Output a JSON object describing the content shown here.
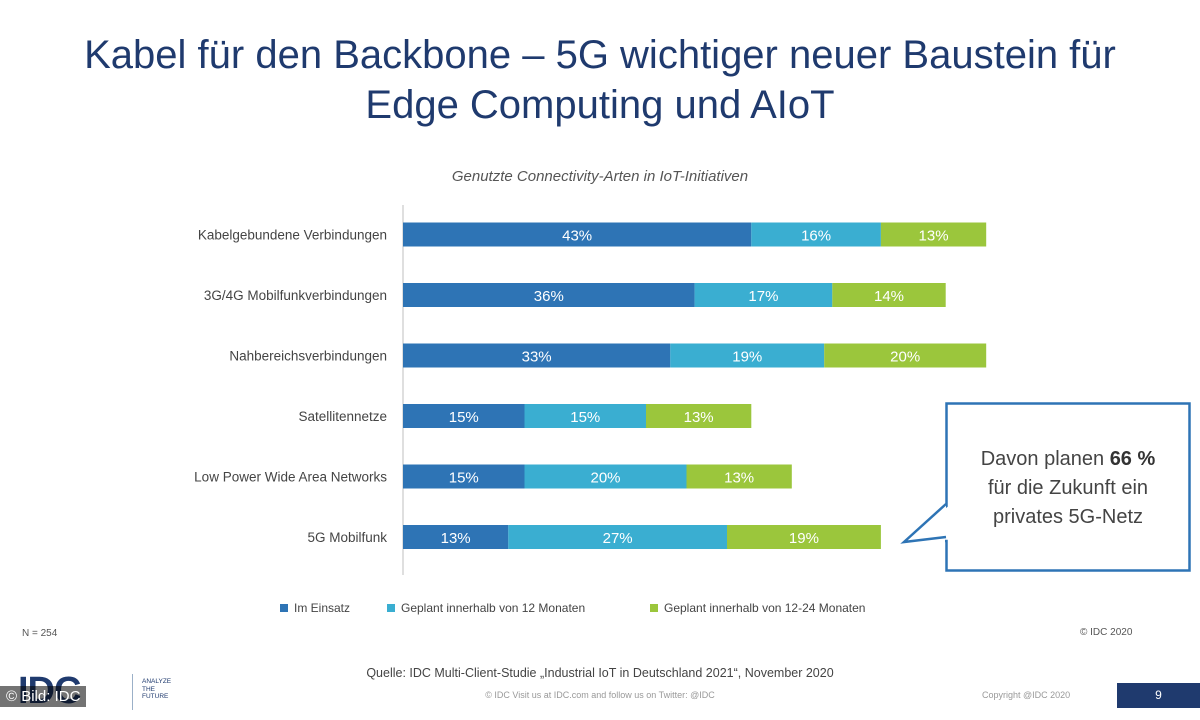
{
  "slide": {
    "title_line1": "Kabel für den Backbone – 5G wichtiger neuer Baustein für",
    "title_line2": "Edge Computing und AIoT",
    "sample_size": "N = 254",
    "copyright": "© IDC 2020",
    "source": "Quelle: IDC Multi-Client-Studie  „Industrial IoT in Deutschland 2021“, November 2020",
    "footer": "© IDC   Visit us at IDC.com and follow us on Twitter: @IDC",
    "footer_copyright": "Copyright @IDC 2020",
    "page_number": "9",
    "logo_text": "IDC",
    "logo_tagline_1": "ANALYZE",
    "logo_tagline_2": "THE",
    "logo_tagline_3": "FUTURE",
    "image_credit": "© Bild: IDC"
  },
  "callout": {
    "line1_prefix": "Davon planen ",
    "line1_bold": "66 %",
    "line2": "für die Zukunft ein",
    "line3": "privates 5G-Netz"
  },
  "colors": {
    "series1": "#2e74b5",
    "series2": "#3aaed1",
    "series3": "#9bc63c",
    "title": "#1f3a6e"
  },
  "chart_data": {
    "type": "bar",
    "orientation": "horizontal",
    "stacked": true,
    "title": "Genutzte Connectivity-Arten in IoT-Initiativen",
    "categories": [
      "Kabelgebundene Verbindungen",
      "3G/4G Mobilfunkverbindungen",
      "Nahbereichsverbindungen",
      "Satellitennetze",
      "Low Power Wide Area Networks",
      "5G Mobilfunk"
    ],
    "series": [
      {
        "name": "Im Einsatz",
        "values": [
          43,
          36,
          33,
          15,
          15,
          13
        ],
        "labels": [
          "43%",
          "36%",
          "33%",
          "15%",
          "15%",
          "13%"
        ]
      },
      {
        "name": "Geplant innerhalb von 12 Monaten",
        "values": [
          16,
          17,
          19,
          15,
          20,
          27
        ],
        "labels": [
          "16%",
          "17%",
          "19%",
          "15%",
          "20%",
          "27%"
        ]
      },
      {
        "name": "Geplant innerhalb von 12-24 Monaten",
        "values": [
          13,
          14,
          20,
          13,
          13,
          19
        ],
        "labels": [
          "13%",
          "14%",
          "20%",
          "13%",
          "13%",
          "19%"
        ]
      }
    ],
    "xlim": [
      0,
      100
    ],
    "grid": false,
    "legend": "bottom"
  }
}
